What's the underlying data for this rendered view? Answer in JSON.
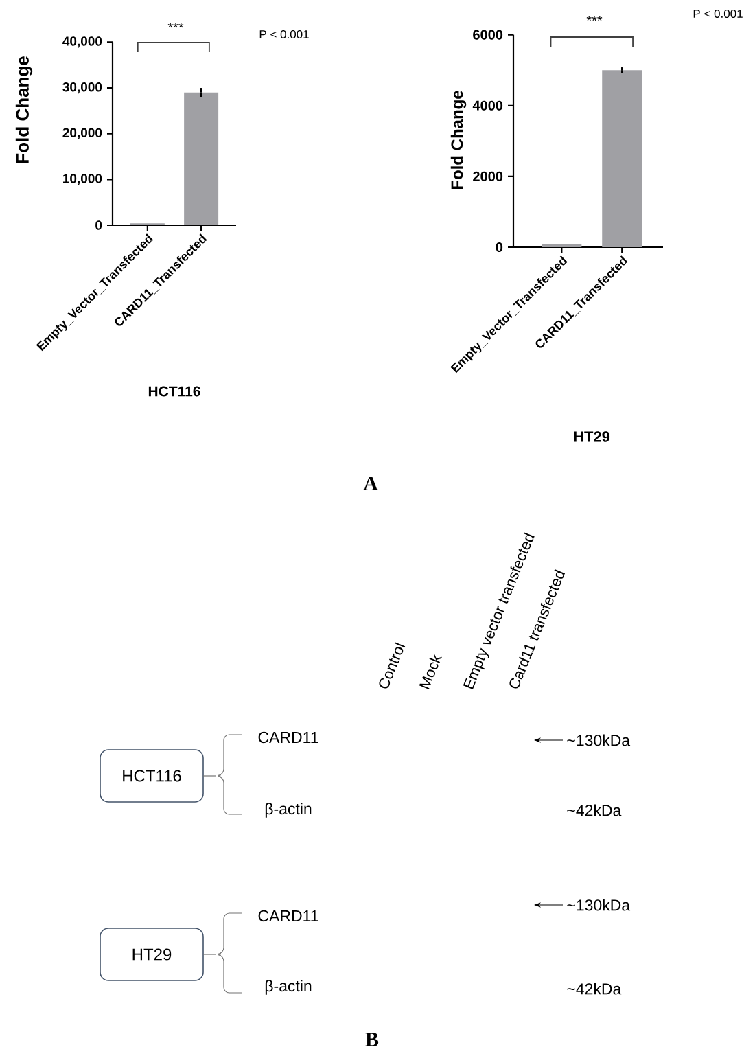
{
  "chart_data": [
    {
      "type": "bar",
      "categories": [
        "Empty_Vector_Transfected",
        "CARD11_Transfected"
      ],
      "values": [
        400,
        29000
      ],
      "errors": [
        null,
        1000
      ],
      "color": "#a0a0a4",
      "ylim": [
        0,
        40000
      ],
      "yticks": [
        0,
        {
          "value": 10000,
          "label": "10,000"
        },
        {
          "value": 20000,
          "label": "20,000"
        },
        {
          "value": 30000,
          "label": "30,000"
        },
        {
          "value": 40000,
          "label": "40,000"
        }
      ],
      "ylabel": "Fold Change",
      "xlabel": "HCT116",
      "annotations": [
        "***",
        "P < 0.001"
      ]
    },
    {
      "type": "bar",
      "categories": [
        "Empty_Vector_Transfected",
        "CARD11_Transfected"
      ],
      "values": [
        80,
        5000
      ],
      "errors": [
        null,
        80
      ],
      "color": "#a0a0a4",
      "ylim": [
        0,
        6000
      ],
      "yticks": [
        0,
        2000,
        4000,
        6000
      ],
      "ylabel": "Fold Change",
      "xlabel": "HT29",
      "annotations": [
        "***",
        "P < 0.001",
        "A"
      ]
    },
    {
      "type": "other",
      "annotations": [
        "Control",
        "Mock",
        "Empty vector transfected",
        "Card11 transfected",
        "HCT116",
        "CARD11",
        "β-actin",
        "~130kDa",
        "~42kDa",
        "HT29",
        "CARD11",
        "β-actin",
        "~130kDa",
        "~42kDa",
        "B"
      ]
    }
  ]
}
